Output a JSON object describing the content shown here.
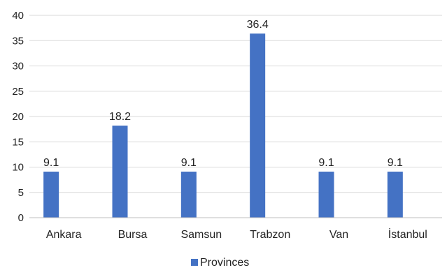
{
  "chart_data": {
    "type": "bar",
    "title": "",
    "xlabel": "",
    "ylabel": "",
    "categories": [
      "Ankara",
      "Bursa",
      "Samsun",
      "Trabzon",
      "Van",
      "İstanbul"
    ],
    "series": [
      {
        "name": "Provinces",
        "values": [
          9.1,
          18.2,
          9.1,
          36.4,
          9.1,
          9.1
        ],
        "data_labels": [
          "9.1",
          "18.2",
          "9.1",
          "36.4",
          "9.1",
          "9.1"
        ],
        "color": "#4472C4"
      }
    ],
    "ylim": [
      0,
      40
    ],
    "yticks": [
      0,
      5,
      10,
      15,
      20,
      25,
      30,
      35,
      40
    ],
    "grid": "horizontal",
    "legend": "bottom-center"
  }
}
